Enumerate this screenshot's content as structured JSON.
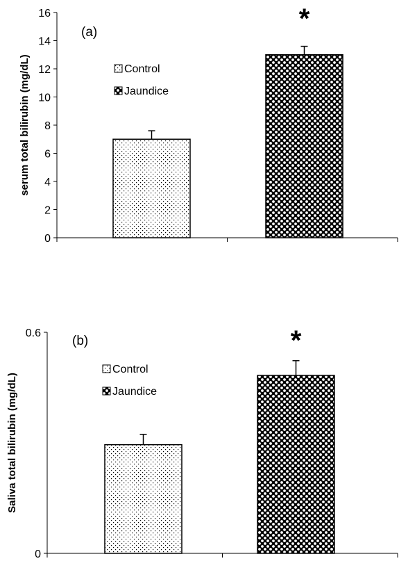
{
  "chart_data": [
    {
      "type": "bar",
      "panel_label": "(a)",
      "ylabel": "serum total bilirubin (mg/dL)",
      "ylim": [
        0,
        16
      ],
      "yticks": [
        0,
        2,
        4,
        6,
        8,
        10,
        12,
        14,
        16
      ],
      "categories": [
        "Control",
        "Jaundice"
      ],
      "values": [
        7.0,
        13.0
      ],
      "errors": [
        0.6,
        0.6
      ],
      "significance": [
        "",
        "*"
      ],
      "legend": [
        "Control",
        "Jaundice"
      ],
      "legend_position": "upper-left",
      "grid": false
    },
    {
      "type": "bar",
      "panel_label": "(b)",
      "ylabel": "Saliva total bilirubin (mg/dL)",
      "ylim": [
        0,
        0.6
      ],
      "yticks": [
        0,
        0.6
      ],
      "categories": [
        "Control",
        "Jaundice"
      ],
      "values": [
        0.295,
        0.483
      ],
      "errors": [
        0.028,
        0.04
      ],
      "significance": [
        "",
        "*"
      ],
      "legend": [
        "Control",
        "Jaundice"
      ],
      "legend_position": "upper-left",
      "grid": false
    }
  ]
}
